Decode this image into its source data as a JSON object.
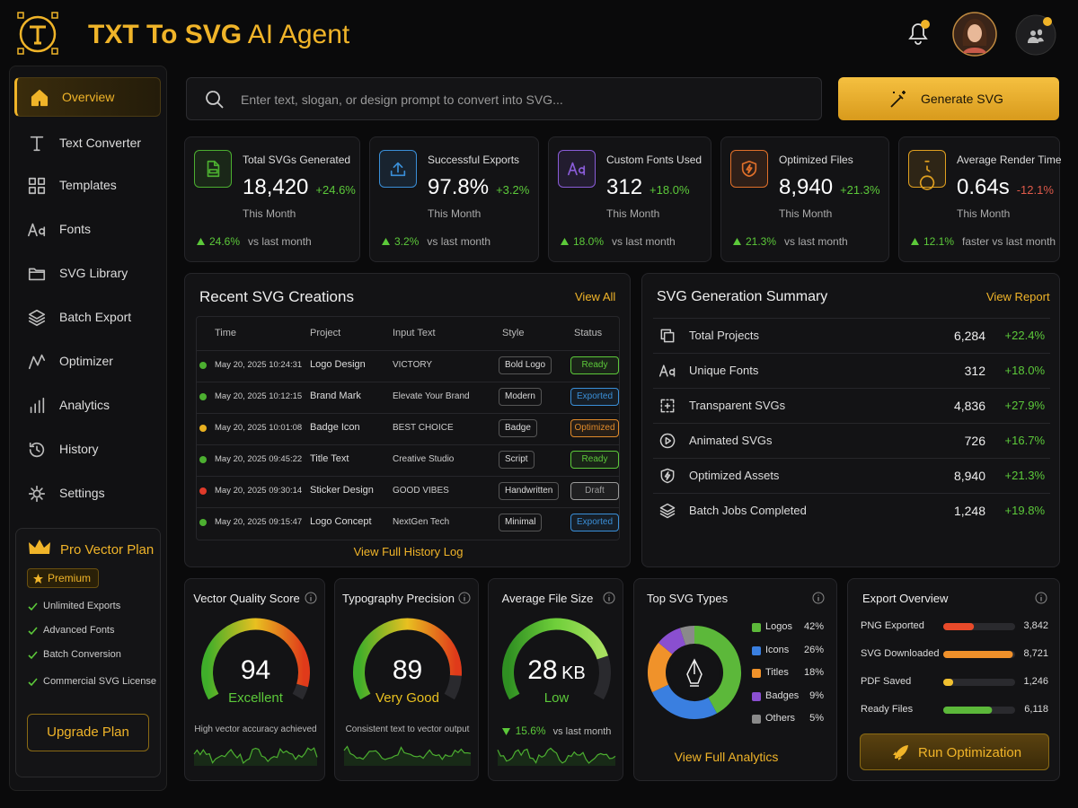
{
  "header": {
    "title_main": "TXT To SVG",
    "title_accent": "AI Agent"
  },
  "sidebar": {
    "active": 0,
    "nav": [
      "Overview",
      "Text Converter",
      "Templates",
      "Fonts",
      "SVG Library",
      "Batch Export",
      "Optimizer",
      "Analytics",
      "History",
      "Settings"
    ],
    "plan": {
      "title": "Pro Vector Plan",
      "badge": "Premium",
      "features": [
        "Unlimited Exports",
        "Advanced Fonts",
        "Batch Conversion",
        "Commercial SVG License"
      ],
      "button": "Upgrade Plan"
    }
  },
  "search": {
    "placeholder": "Enter text, slogan, or design prompt to convert into SVG...",
    "button": "Generate SVG"
  },
  "kpis": [
    {
      "label": "Total SVGs Generated",
      "value": "18,420",
      "change": "+24.6%",
      "change_color": "#5cc93a",
      "period": "This Month",
      "footer_change": "24.6%",
      "footer_text": "vs last month",
      "icon_color": "#4caf30"
    },
    {
      "label": "Successful Exports",
      "value": "97.8%",
      "change": "+3.2%",
      "change_color": "#5cc93a",
      "period": "This Month",
      "footer_change": "3.2%",
      "footer_text": "vs last month",
      "icon_color": "#3a8fd8"
    },
    {
      "label": "Custom Fonts Used",
      "value": "312",
      "change": "+18.0%",
      "change_color": "#5cc93a",
      "period": "This Month",
      "footer_change": "18.0%",
      "footer_text": "vs last month",
      "icon_color": "#8a5cd8"
    },
    {
      "label": "Optimized Files",
      "value": "8,940",
      "change": "+21.3%",
      "change_color": "#5cc93a",
      "period": "This Month",
      "footer_change": "21.3%",
      "footer_text": "vs last month",
      "icon_color": "#e0702a"
    },
    {
      "label": "Average Render Time",
      "value": "0.64s",
      "change": "-12.1%",
      "change_color": "#e05a4a",
      "period": "This Month",
      "footer_change": "12.1%",
      "footer_text": "faster vs last month",
      "icon_color": "#e0a020"
    }
  ],
  "recent": {
    "title": "Recent SVG Creations",
    "link": "View All",
    "columns": [
      "Time",
      "Project",
      "Input Text",
      "Style",
      "Status"
    ],
    "rows": [
      {
        "time": "May 20, 2025 10:24:31",
        "project": "Logo Design",
        "input": "VICTORY",
        "style": "Bold Logo",
        "status": "Ready",
        "dot_color": "#4caf30",
        "status_color": "#5cc93a"
      },
      {
        "time": "May 20, 2025 10:12:15",
        "project": "Brand Mark",
        "input": "Elevate Your Brand",
        "style": "Modern",
        "status": "Exported",
        "dot_color": "#4caf30",
        "status_color": "#3a8fd8"
      },
      {
        "time": "May 20, 2025 10:01:08",
        "project": "Badge Icon",
        "input": "BEST CHOICE",
        "style": "Badge",
        "status": "Optimized",
        "dot_color": "#e8b020",
        "status_color": "#e08a2a"
      },
      {
        "time": "May 20, 2025 09:45:22",
        "project": "Title Text",
        "input": "Creative Studio",
        "style": "Script",
        "status": "Ready",
        "dot_color": "#4caf30",
        "status_color": "#5cc93a"
      },
      {
        "time": "May 20, 2025 09:30:14",
        "project": "Sticker Design",
        "input": "GOOD VIBES",
        "style": "Handwritten",
        "status": "Draft",
        "dot_color": "#e03a2a",
        "status_color": "#9a9a9a"
      },
      {
        "time": "May 20, 2025 09:15:47",
        "project": "Logo Concept",
        "input": "NextGen Tech",
        "style": "Minimal",
        "status": "Exported",
        "dot_color": "#4caf30",
        "status_color": "#3a8fd8"
      }
    ],
    "footer": "View Full History Log"
  },
  "summary": {
    "title": "SVG Generation Summary",
    "link": "View Report",
    "rows": [
      {
        "label": "Total Projects",
        "value": "6,284",
        "change": "+22.4%"
      },
      {
        "label": "Unique Fonts",
        "value": "312",
        "change": "+18.0%"
      },
      {
        "label": "Transparent SVGs",
        "value": "4,836",
        "change": "+27.9%"
      },
      {
        "label": "Animated SVGs",
        "value": "726",
        "change": "+16.7%"
      },
      {
        "label": "Optimized Assets",
        "value": "8,940",
        "change": "+21.3%"
      },
      {
        "label": "Batch Jobs Completed",
        "value": "1,248",
        "change": "+19.8%"
      }
    ]
  },
  "gauges": [
    {
      "title": "Vector Quality Score",
      "value": 94,
      "range": [
        0,
        100
      ],
      "label": "Excellent",
      "label_color": "#5cc93a",
      "colors": [
        "#3fae2a",
        "#e8c020",
        "#e03a1a"
      ],
      "note": "High vector accuracy achieved"
    },
    {
      "title": "Typography Precision",
      "value": 89,
      "range": [
        0,
        100
      ],
      "label": "Very Good",
      "label_color": "#e8c020",
      "colors": [
        "#3fae2a",
        "#e8c020",
        "#e03a1a"
      ],
      "note": "Consistent text to vector output"
    },
    {
      "title": "Average File Size",
      "value": 28,
      "unit": "KB",
      "range": [
        0,
        35
      ],
      "label": "Low",
      "label_color": "#5cc93a",
      "colors": [
        "#2f8f22",
        "#6fcf3a",
        "#a8e060"
      ],
      "note_change": "15.6%",
      "note": "vs last month"
    }
  ],
  "types": {
    "type": "pie",
    "title": "Top SVG Types",
    "link": "View Full Analytics",
    "items": [
      {
        "name": "Logos",
        "value": 42,
        "value_label": "42%",
        "color": "#5cb83a"
      },
      {
        "name": "Icons",
        "value": 26,
        "value_label": "26%",
        "color": "#3a7fe0"
      },
      {
        "name": "Titles",
        "value": 18,
        "value_label": "18%",
        "color": "#f0922a"
      },
      {
        "name": "Badges",
        "value": 9,
        "value_label": "9%",
        "color": "#8a4fd0"
      },
      {
        "name": "Others",
        "value": 5,
        "value_label": "5%",
        "color": "#8a8a8a"
      }
    ]
  },
  "export": {
    "type": "bar",
    "title": "Export Overview",
    "xlim": [
      0,
      9000
    ],
    "items": [
      {
        "name": "PNG Exported",
        "value": 3842,
        "value_label": "3,842",
        "color": "#e84a2a"
      },
      {
        "name": "SVG Downloaded",
        "value": 8721,
        "value_label": "8,721",
        "color": "#f0902a"
      },
      {
        "name": "PDF Saved",
        "value": 1246,
        "value_label": "1,246",
        "color": "#f0c030"
      },
      {
        "name": "Ready Files",
        "value": 6118,
        "value_label": "6,118",
        "color": "#5cb83a"
      }
    ],
    "button": "Run Optimization"
  }
}
